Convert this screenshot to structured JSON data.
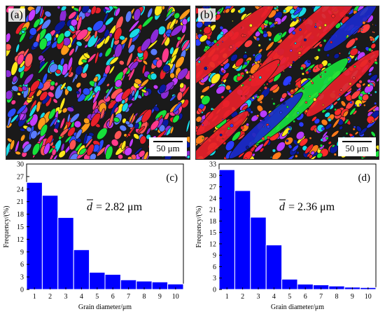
{
  "panels": {
    "a": {
      "label": "(a)",
      "scale_bar": "50 μm",
      "palette": [
        "#e8202a",
        "#ff3a8c",
        "#2b4cff",
        "#0a1aa0",
        "#17e03a",
        "#ffe81a",
        "#ff9a1a",
        "#c43cff",
        "#19d9e6",
        "#8a2bd6",
        "#ff5555",
        "#5a7bff"
      ],
      "dominant": []
    },
    "b": {
      "label": "(b)",
      "scale_bar": "50 μm",
      "palette": [
        "#e8202a",
        "#ff2a2a",
        "#2b3cff",
        "#0a1aa0",
        "#17e03a",
        "#ffe81a",
        "#ff7a1a",
        "#b83cff",
        "#19d9e6",
        "#ff4040"
      ],
      "dominant": [
        "#e8202a",
        "#1a2acc",
        "#e8202a",
        "#1a2acc",
        "#e8202a"
      ]
    }
  },
  "chart_data": [
    {
      "type": "bar",
      "panel_label": "(c)",
      "annotation_symbol": "d",
      "annotation_value": "= 2.82 μm",
      "xlabel": "Grain diameter/μm",
      "ylabel": "Frequency/(%)",
      "categories": [
        "1",
        "2",
        "3",
        "4",
        "5",
        "6",
        "7",
        "8",
        "9",
        "10"
      ],
      "values": [
        25.6,
        22.5,
        17.2,
        9.5,
        4.1,
        3.6,
        2.3,
        2.0,
        1.8,
        1.3
      ],
      "ylim": [
        0,
        30
      ],
      "yticks": [
        "0",
        "3",
        "6",
        "9",
        "12",
        "15",
        "18",
        "21",
        "24",
        "27",
        "30"
      ],
      "ytick_values": [
        0,
        3,
        6,
        9,
        12,
        15,
        18,
        21,
        24,
        27,
        30
      ],
      "bar_color": "#0000ff"
    },
    {
      "type": "bar",
      "panel_label": "(d)",
      "annotation_symbol": "d",
      "annotation_value": "= 2.36 μm",
      "xlabel": "Grain diameter/μm",
      "ylabel": "Frequency/(%)",
      "categories": [
        "1",
        "2",
        "3",
        "4",
        "5",
        "6",
        "7",
        "8",
        "9",
        "10"
      ],
      "values": [
        31.5,
        26.0,
        19.0,
        11.7,
        2.7,
        1.4,
        1.2,
        0.9,
        0.6,
        0.5
      ],
      "ylim": [
        0,
        33
      ],
      "yticks": [
        "0",
        "3",
        "6",
        "9",
        "12",
        "15",
        "18",
        "21",
        "24",
        "27",
        "30",
        "33"
      ],
      "ytick_values": [
        0,
        3,
        6,
        9,
        12,
        15,
        18,
        21,
        24,
        27,
        30,
        33
      ],
      "bar_color": "#0000ff"
    }
  ]
}
